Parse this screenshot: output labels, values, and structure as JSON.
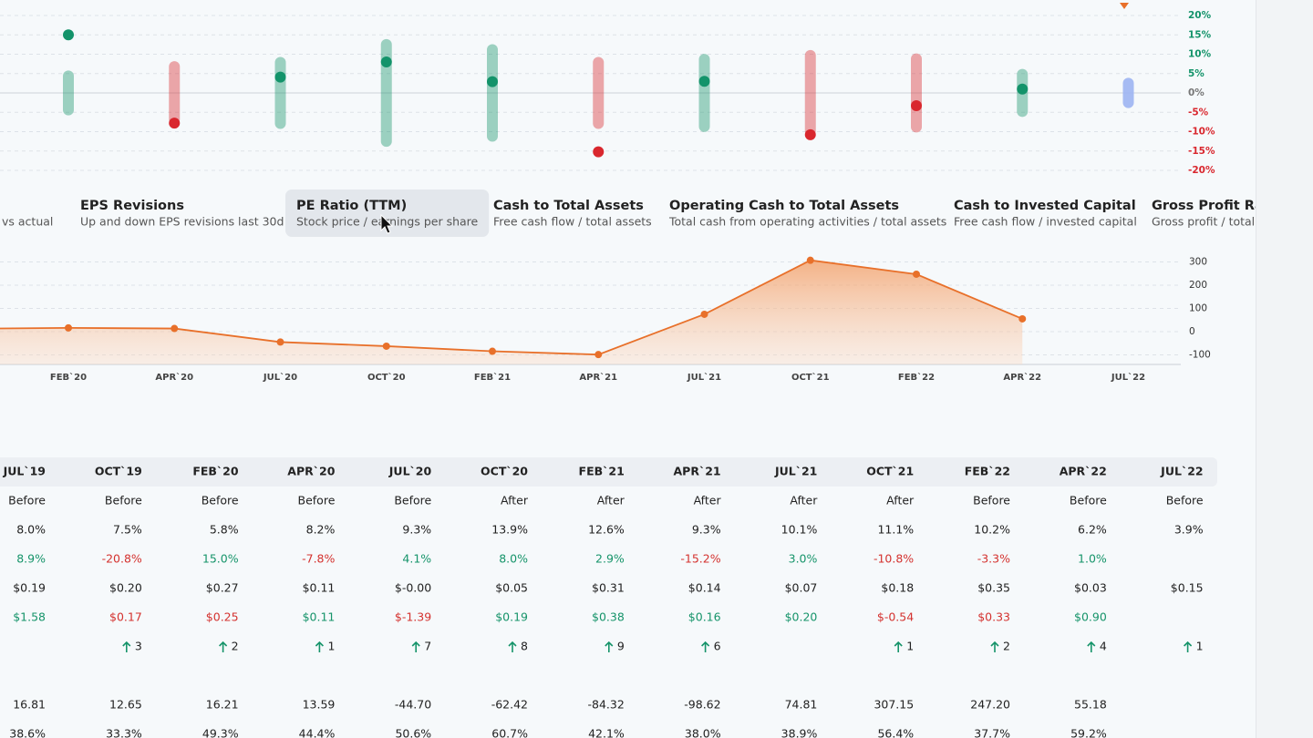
{
  "chart_data": [
    {
      "type": "dot_range",
      "range": [
        5.8,
        8.2,
        9.3,
        13.9,
        12.6,
        9.3,
        10.1,
        11.1,
        10.2,
        6.2,
        3.9
      ],
      "values": [
        15.0,
        -7.8,
        4.1,
        8.0,
        2.9,
        -15.2,
        3.0,
        -10.8,
        -3.3,
        1.0,
        null
      ],
      "up_color": "#13936a",
      "down_color": "#d9272e",
      "pending_color": "#9db4f2",
      "ylim": [
        -20,
        20
      ],
      "yticks": [
        {
          "value": 20,
          "label": "20%"
        },
        {
          "value": 15,
          "label": "15%"
        },
        {
          "value": 10,
          "label": "10%"
        },
        {
          "value": 5,
          "label": "5%"
        },
        {
          "value": 0,
          "label": "0%"
        },
        {
          "value": -5,
          "label": "-5%"
        },
        {
          "value": -10,
          "label": "-10%"
        },
        {
          "value": -15,
          "label": "-15%"
        },
        {
          "value": -20,
          "label": "-20%"
        }
      ],
      "grid": true
    },
    {
      "type": "area",
      "categories": [
        null,
        "FEB`20",
        "APR`20",
        "JUL`20",
        "OCT`20",
        "FEB`21",
        "APR`21",
        "JUL`21",
        "OCT`21",
        "FEB`22",
        "APR`22",
        "JUL`22"
      ],
      "values": [
        12.65,
        16.21,
        13.59,
        -44.7,
        -62.42,
        -84.32,
        -98.62,
        74.81,
        307.15,
        247.2,
        55.18,
        null
      ],
      "color": "#e8702a",
      "ylim": [
        -143,
        340
      ],
      "yticks": [
        300,
        200,
        100,
        0,
        -100
      ],
      "grid": true
    }
  ],
  "tabs": [
    {
      "subtitle": "vs actual"
    },
    {
      "title": "EPS Revisions",
      "subtitle": "Up and down EPS revisions last 30d"
    },
    {
      "title": "PE Ratio (TTM)",
      "subtitle": "Stock price / earnings per share",
      "selected": true
    },
    {
      "title": "Cash to Total Assets",
      "subtitle": "Free cash flow / total assets"
    },
    {
      "title": "Operating Cash to Total Assets",
      "subtitle": "Total cash from operating activities / total assets"
    },
    {
      "title": "Cash to Invested Capital",
      "subtitle": "Free cash flow / invested capital"
    },
    {
      "title": "Gross Profit Ratio",
      "subtitle": "Gross profit / total assets"
    }
  ],
  "table": {
    "tone_colors": {
      "up": "#16946a",
      "down": "#d4322f"
    },
    "header": [
      "JUL`19",
      "OCT`19",
      "FEB`20",
      "APR`20",
      "JUL`20",
      "OCT`20",
      "FEB`21",
      "APR`21",
      "JUL`21",
      "OCT`21",
      "FEB`22",
      "APR`22",
      "JUL`22"
    ],
    "rows": [
      {
        "cells": [
          "Before",
          "Before",
          "Before",
          "Before",
          "Before",
          "After",
          "After",
          "After",
          "After",
          "After",
          "Before",
          "Before",
          "Before"
        ]
      },
      {
        "cells": [
          "8.0%",
          "7.5%",
          "5.8%",
          "8.2%",
          "9.3%",
          "13.9%",
          "12.6%",
          "9.3%",
          "10.1%",
          "11.1%",
          "10.2%",
          "6.2%",
          "3.9%"
        ]
      },
      {
        "cells": [
          "8.9%",
          "-20.8%",
          "15.0%",
          "-7.8%",
          "4.1%",
          "8.0%",
          "2.9%",
          "-15.2%",
          "3.0%",
          "-10.8%",
          "-3.3%",
          "1.0%",
          null
        ],
        "tones": [
          "up",
          "down",
          "up",
          "down",
          "up",
          "up",
          "up",
          "down",
          "up",
          "down",
          "down",
          "up",
          null
        ]
      },
      {
        "cells": [
          "$0.19",
          "$0.20",
          "$0.27",
          "$0.11",
          "$-0.00",
          "$0.05",
          "$0.31",
          "$0.14",
          "$0.07",
          "$0.18",
          "$0.35",
          "$0.03",
          "$0.15"
        ]
      },
      {
        "cells": [
          "$1.58",
          "$0.17",
          "$0.25",
          "$0.11",
          "$-1.39",
          "$0.19",
          "$0.38",
          "$0.16",
          "$0.20",
          "$-0.54",
          "$0.33",
          "$0.90",
          null
        ],
        "tones": [
          "up",
          "down",
          "down",
          "up",
          "down",
          "up",
          "up",
          "up",
          "up",
          "down",
          "down",
          "up",
          null
        ]
      },
      {
        "cells": [
          null,
          "3",
          "2",
          "1",
          "7",
          "8",
          "9",
          "6",
          null,
          "1",
          "2",
          "4",
          "1"
        ],
        "arrow": true
      },
      {
        "cells": [
          null,
          null,
          null,
          null,
          null,
          null,
          null,
          null,
          null,
          null,
          null,
          null,
          null
        ]
      },
      {
        "cells": [
          "16.81",
          "12.65",
          "16.21",
          "13.59",
          "-44.70",
          "-62.42",
          "-84.32",
          "-98.62",
          "74.81",
          "307.15",
          "247.20",
          "55.18",
          null
        ]
      },
      {
        "cells": [
          "38.6%",
          "33.3%",
          "49.3%",
          "44.4%",
          "50.6%",
          "60.7%",
          "42.1%",
          "38.0%",
          "38.9%",
          "56.4%",
          "37.7%",
          "59.2%",
          null
        ]
      }
    ]
  }
}
